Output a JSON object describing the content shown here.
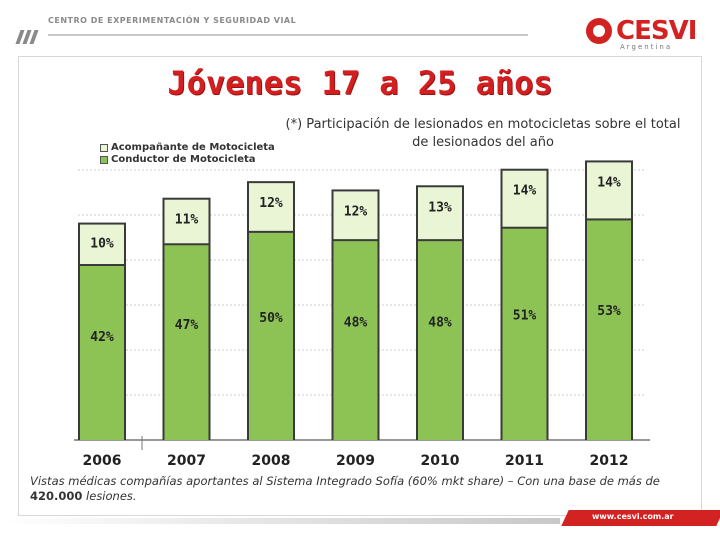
{
  "header": {
    "text": "CENTRO DE EXPERIMENTACIÓN Y SEGURIDAD VIAL",
    "logo_text": "CESVI",
    "logo_sub": "Argentina"
  },
  "title": "Jóvenes 17 a 25 años",
  "subnote": "(*) Participación de lesionados en motocicletas sobre el total de lesionados del año",
  "footer": {
    "note_before": "Vistas médicas compañías aportantes al Sistema Integrado Sofía (60% mkt share) – Con una base de más de ",
    "note_bold": "420.000",
    "note_after": " lesiones.",
    "url": "www.cesvi.com.ar"
  },
  "colors": {
    "conductor": "#8dc255",
    "conductor_dark": "#5f8f2f",
    "acompanante": "#eaf5d6",
    "accent": "#d32222"
  },
  "chart_data": {
    "type": "bar",
    "stacked": true,
    "categories": [
      "2006",
      "2007",
      "2008",
      "2009",
      "2010",
      "2011",
      "2012"
    ],
    "series": [
      {
        "name": "Conductor de Motocicleta",
        "values": [
          42,
          47,
          50,
          48,
          48,
          51,
          53
        ],
        "labels": [
          "42%",
          "47%",
          "50%",
          "48%",
          "48%",
          "51%",
          "53%"
        ]
      },
      {
        "name": "Acompañante de Motocicleta",
        "values": [
          10,
          11,
          12,
          12,
          13,
          14,
          14
        ],
        "labels": [
          "10%",
          "11%",
          "12%",
          "12%",
          "13%",
          "14%",
          "14%"
        ]
      }
    ],
    "legend": [
      "Acompañante de Motocicleta",
      "Conductor de Motocicleta"
    ],
    "ylim": [
      0,
      70
    ],
    "xlabel": "",
    "ylabel": ""
  }
}
